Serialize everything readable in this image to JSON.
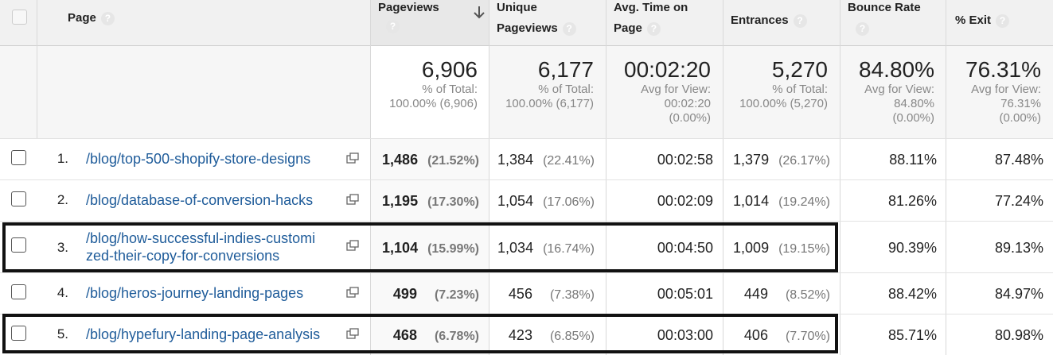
{
  "headers": {
    "page": "Page",
    "pageviews": "Pageviews",
    "unique_pageviews_1": "Unique",
    "unique_pageviews_2": "Pageviews",
    "avg_time_1": "Avg. Time on",
    "avg_time_2": "Page",
    "entrances": "Entrances",
    "bounce_rate": "Bounce Rate",
    "exit": "% Exit",
    "help": "?",
    "sort_icon": "arrow-down-icon"
  },
  "totals": {
    "pageviews": {
      "value": "6,906",
      "l1": "% of Total:",
      "l2": "100.00% (6,906)"
    },
    "unique": {
      "value": "6,177",
      "l1": "% of Total:",
      "l2": "100.00% (6,177)"
    },
    "avg_time": {
      "value": "00:02:20",
      "l1": "Avg for View:",
      "l2": "00:02:20",
      "l3": "(0.00%)"
    },
    "entrances": {
      "value": "5,270",
      "l1": "% of Total:",
      "l2": "100.00% (5,270)"
    },
    "bounce": {
      "value": "84.80%",
      "l1": "Avg for View:",
      "l2": "84.80%",
      "l3": "(0.00%)"
    },
    "exit": {
      "value": "76.31%",
      "l1": "Avg for View:",
      "l2": "76.31%",
      "l3": "(0.00%)"
    }
  },
  "rows": [
    {
      "n": "1.",
      "page_a": "/blog/top-500-shopify-store-designs",
      "page_b": "",
      "pv": "1,486",
      "pv_pct": "(21.52%)",
      "upv": "1,384",
      "upv_pct": "(22.41%)",
      "time": "00:02:58",
      "ent": "1,379",
      "ent_pct": "(26.17%)",
      "bounce": "88.11%",
      "exit": "87.48%"
    },
    {
      "n": "2.",
      "page_a": "/blog/database-of-conversion-hacks",
      "page_b": "",
      "pv": "1,195",
      "pv_pct": "(17.30%)",
      "upv": "1,054",
      "upv_pct": "(17.06%)",
      "time": "00:02:09",
      "ent": "1,014",
      "ent_pct": "(19.24%)",
      "bounce": "81.26%",
      "exit": "77.24%"
    },
    {
      "n": "3.",
      "page_a": "/blog/how-successful-indies-customi",
      "page_b": "zed-their-copy-for-conversions",
      "pv": "1,104",
      "pv_pct": "(15.99%)",
      "upv": "1,034",
      "upv_pct": "(16.74%)",
      "time": "00:04:50",
      "ent": "1,009",
      "ent_pct": "(19.15%)",
      "bounce": "90.39%",
      "exit": "89.13%"
    },
    {
      "n": "4.",
      "page_a": "/blog/heros-journey-landing-pages",
      "page_b": "",
      "pv": "499",
      "pv_pct": "(7.23%)",
      "upv": "456",
      "upv_pct": "(7.38%)",
      "time": "00:05:01",
      "ent": "449",
      "ent_pct": "(8.52%)",
      "bounce": "88.42%",
      "exit": "84.97%"
    },
    {
      "n": "5.",
      "page_a": "/blog/hypefury-landing-page-analysis",
      "page_b": "",
      "pv": "468",
      "pv_pct": "(6.78%)",
      "upv": "423",
      "upv_pct": "(6.85%)",
      "time": "00:03:00",
      "ent": "406",
      "ent_pct": "(7.70%)",
      "bounce": "85.71%",
      "exit": "80.98%"
    }
  ]
}
